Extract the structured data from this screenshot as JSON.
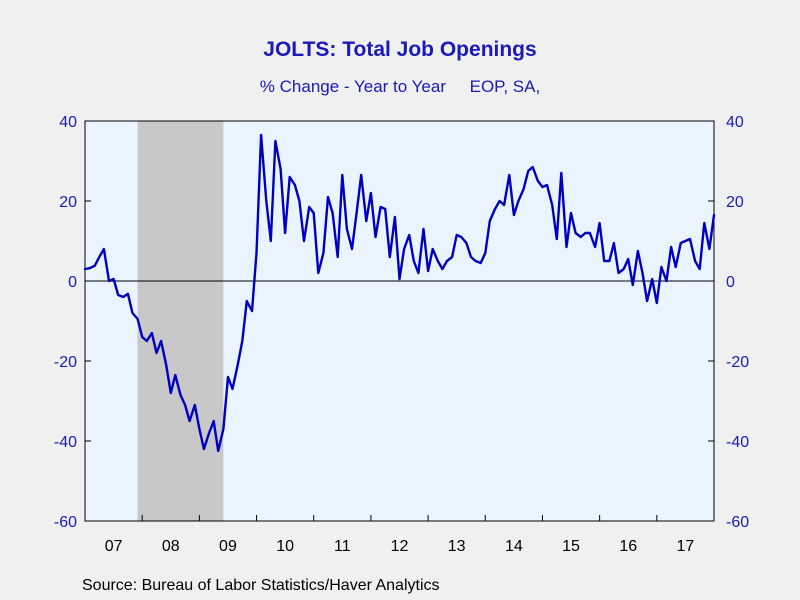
{
  "title": "JOLTS: Total Job Openings",
  "subtitle": "% Change - Year to Year     EOP, SA,",
  "source": "Source:  Bureau of Labor Statistics/Haver Analytics",
  "colors": {
    "line": "#0000c0",
    "text": "#1a1ab8",
    "plot_bg": "#eaf4ff",
    "recession": "#c8c8c8",
    "page_bg": "#f0f0f0"
  },
  "chart_data": {
    "type": "line",
    "title": "JOLTS: Total Job Openings",
    "subtitle": "% Change - Year to Year     EOP, SA,",
    "xlabel": "",
    "ylabel": "",
    "ylim": [
      -60,
      40
    ],
    "yticks": [
      40,
      20,
      0,
      -20,
      -40,
      -60
    ],
    "xlim": [
      2007.0,
      2018.0
    ],
    "xtick_labels": [
      "07",
      "08",
      "09",
      "10",
      "11",
      "12",
      "13",
      "14",
      "15",
      "16",
      "17"
    ],
    "zero_line": true,
    "grid": false,
    "recession": {
      "start": 2007.92,
      "end": 2009.42
    },
    "series": [
      {
        "points": [
          [
            2007.0,
            3.0
          ],
          [
            2007.08,
            3.2
          ],
          [
            2007.17,
            3.8
          ],
          [
            2007.25,
            6.0
          ],
          [
            2007.33,
            8.0
          ],
          [
            2007.42,
            0.0
          ],
          [
            2007.5,
            0.5
          ],
          [
            2007.58,
            -3.5
          ],
          [
            2007.67,
            -4.0
          ],
          [
            2007.75,
            -3.2
          ],
          [
            2007.83,
            -8.0
          ],
          [
            2007.92,
            -9.5
          ],
          [
            2008.0,
            -14.0
          ],
          [
            2008.08,
            -15.0
          ],
          [
            2008.17,
            -13.0
          ],
          [
            2008.25,
            -18.0
          ],
          [
            2008.33,
            -15.0
          ],
          [
            2008.42,
            -21.0
          ],
          [
            2008.5,
            -28.0
          ],
          [
            2008.58,
            -23.5
          ],
          [
            2008.67,
            -28.5
          ],
          [
            2008.75,
            -31.0
          ],
          [
            2008.83,
            -35.0
          ],
          [
            2008.92,
            -31.0
          ],
          [
            2009.0,
            -37.0
          ],
          [
            2009.08,
            -42.0
          ],
          [
            2009.17,
            -38.0
          ],
          [
            2009.25,
            -35.0
          ],
          [
            2009.33,
            -42.5
          ],
          [
            2009.42,
            -37.0
          ],
          [
            2009.5,
            -24.0
          ],
          [
            2009.58,
            -27.0
          ],
          [
            2009.67,
            -21.0
          ],
          [
            2009.75,
            -15.0
          ],
          [
            2009.83,
            -5.0
          ],
          [
            2009.92,
            -7.5
          ],
          [
            2010.0,
            7.0
          ],
          [
            2010.08,
            36.5
          ],
          [
            2010.17,
            20.0
          ],
          [
            2010.25,
            10.0
          ],
          [
            2010.33,
            35.0
          ],
          [
            2010.42,
            28.0
          ],
          [
            2010.5,
            12.0
          ],
          [
            2010.58,
            26.0
          ],
          [
            2010.67,
            24.0
          ],
          [
            2010.75,
            20.0
          ],
          [
            2010.83,
            10.0
          ],
          [
            2010.92,
            18.5
          ],
          [
            2011.0,
            17.0
          ],
          [
            2011.08,
            2.0
          ],
          [
            2011.17,
            7.0
          ],
          [
            2011.25,
            21.0
          ],
          [
            2011.33,
            17.0
          ],
          [
            2011.42,
            6.0
          ],
          [
            2011.5,
            26.5
          ],
          [
            2011.58,
            13.0
          ],
          [
            2011.67,
            8.0
          ],
          [
            2011.75,
            17.0
          ],
          [
            2011.83,
            26.5
          ],
          [
            2011.92,
            15.0
          ],
          [
            2012.0,
            22.0
          ],
          [
            2012.08,
            11.0
          ],
          [
            2012.17,
            18.5
          ],
          [
            2012.25,
            18.0
          ],
          [
            2012.33,
            6.0
          ],
          [
            2012.42,
            16.0
          ],
          [
            2012.5,
            0.5
          ],
          [
            2012.58,
            8.0
          ],
          [
            2012.67,
            11.5
          ],
          [
            2012.75,
            5.0
          ],
          [
            2012.83,
            2.0
          ],
          [
            2012.92,
            13.0
          ],
          [
            2013.0,
            2.5
          ],
          [
            2013.08,
            8.0
          ],
          [
            2013.17,
            5.0
          ],
          [
            2013.25,
            3.0
          ],
          [
            2013.33,
            5.0
          ],
          [
            2013.42,
            6.0
          ],
          [
            2013.5,
            11.5
          ],
          [
            2013.58,
            11.0
          ],
          [
            2013.67,
            9.5
          ],
          [
            2013.75,
            6.0
          ],
          [
            2013.83,
            5.0
          ],
          [
            2013.92,
            4.5
          ],
          [
            2014.0,
            7.0
          ],
          [
            2014.08,
            15.0
          ],
          [
            2014.17,
            18.0
          ],
          [
            2014.25,
            20.0
          ],
          [
            2014.33,
            19.0
          ],
          [
            2014.42,
            26.5
          ],
          [
            2014.5,
            16.5
          ],
          [
            2014.58,
            20.0
          ],
          [
            2014.67,
            23.0
          ],
          [
            2014.75,
            27.5
          ],
          [
            2014.83,
            28.5
          ],
          [
            2014.92,
            25.0
          ],
          [
            2015.0,
            23.5
          ],
          [
            2015.08,
            24.0
          ],
          [
            2015.17,
            19.0
          ],
          [
            2015.25,
            10.5
          ],
          [
            2015.33,
            27.0
          ],
          [
            2015.42,
            8.5
          ],
          [
            2015.5,
            17.0
          ],
          [
            2015.58,
            12.0
          ],
          [
            2015.67,
            11.0
          ],
          [
            2015.75,
            12.0
          ],
          [
            2015.83,
            12.0
          ],
          [
            2015.92,
            8.5
          ],
          [
            2016.0,
            14.5
          ],
          [
            2016.08,
            5.0
          ],
          [
            2016.17,
            5.0
          ],
          [
            2016.25,
            9.5
          ],
          [
            2016.33,
            2.0
          ],
          [
            2016.42,
            3.0
          ],
          [
            2016.5,
            5.5
          ],
          [
            2016.58,
            -1.0
          ],
          [
            2016.67,
            7.5
          ],
          [
            2016.75,
            2.0
          ],
          [
            2016.83,
            -5.0
          ],
          [
            2016.92,
            0.5
          ],
          [
            2017.0,
            -5.5
          ],
          [
            2017.08,
            3.5
          ],
          [
            2017.17,
            0.0
          ],
          [
            2017.25,
            8.5
          ],
          [
            2017.33,
            3.5
          ],
          [
            2017.42,
            9.5
          ],
          [
            2017.5,
            10.0
          ],
          [
            2017.58,
            10.5
          ],
          [
            2017.67,
            5.0
          ],
          [
            2017.75,
            3.0
          ],
          [
            2017.83,
            14.5
          ],
          [
            2017.92,
            8.0
          ],
          [
            2018.0,
            16.5
          ]
        ]
      }
    ]
  }
}
